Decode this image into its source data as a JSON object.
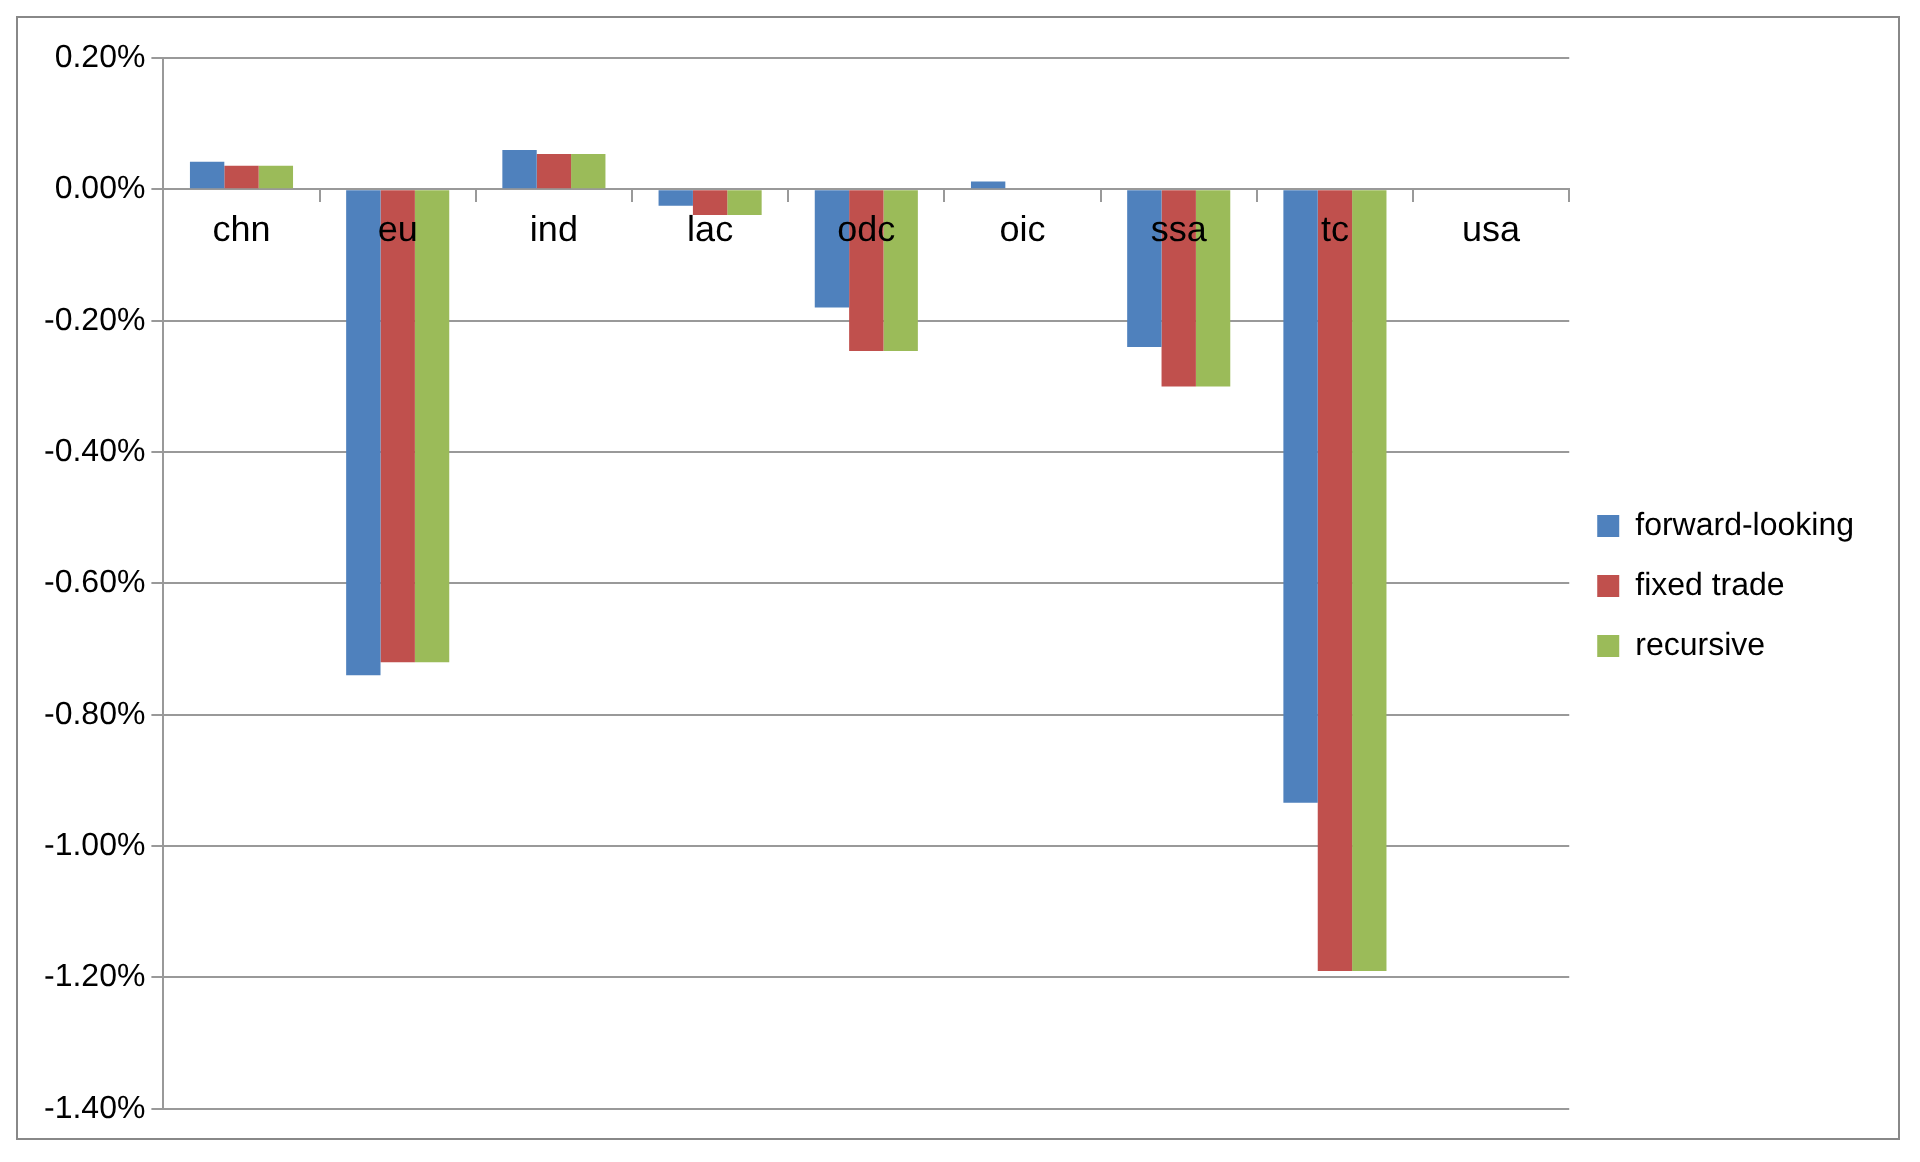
{
  "chart_data": {
    "type": "bar",
    "categories": [
      "chn",
      "eu",
      "ind",
      "lac",
      "odc",
      "oic",
      "ssa",
      "tc",
      "usa"
    ],
    "series": [
      {
        "name": "forward-looking",
        "color": "#4f81bd",
        "values": [
          0.042,
          -0.74,
          0.06,
          -0.025,
          -0.18,
          0.012,
          -0.24,
          -0.934,
          0
        ]
      },
      {
        "name": "fixed trade",
        "color": "#c0504d",
        "values": [
          0.036,
          -0.72,
          0.054,
          -0.039,
          -0.246,
          0,
          -0.3,
          -1.19,
          0
        ]
      },
      {
        "name": "recursive",
        "color": "#9bbb59",
        "values": [
          0.036,
          -0.72,
          0.054,
          -0.039,
          -0.246,
          0,
          -0.3,
          -1.19,
          0
        ]
      }
    ],
    "ylim": [
      -1.4,
      0.2
    ],
    "yticks": [
      {
        "value": 0.2,
        "label": "0.20%"
      },
      {
        "value": 0,
        "label": "0.00%"
      },
      {
        "value": -0.2,
        "label": "-0.20%"
      },
      {
        "value": -0.4,
        "label": "-0.40%"
      },
      {
        "value": -0.6,
        "label": "-0.60%"
      },
      {
        "value": -0.8,
        "label": "-0.80%"
      },
      {
        "value": -1.0,
        "label": "-1.00%"
      },
      {
        "value": -1.2,
        "label": "-1.20%"
      },
      {
        "value": -1.4,
        "label": "-1.40%"
      }
    ],
    "grid": "y",
    "legend": "right"
  }
}
